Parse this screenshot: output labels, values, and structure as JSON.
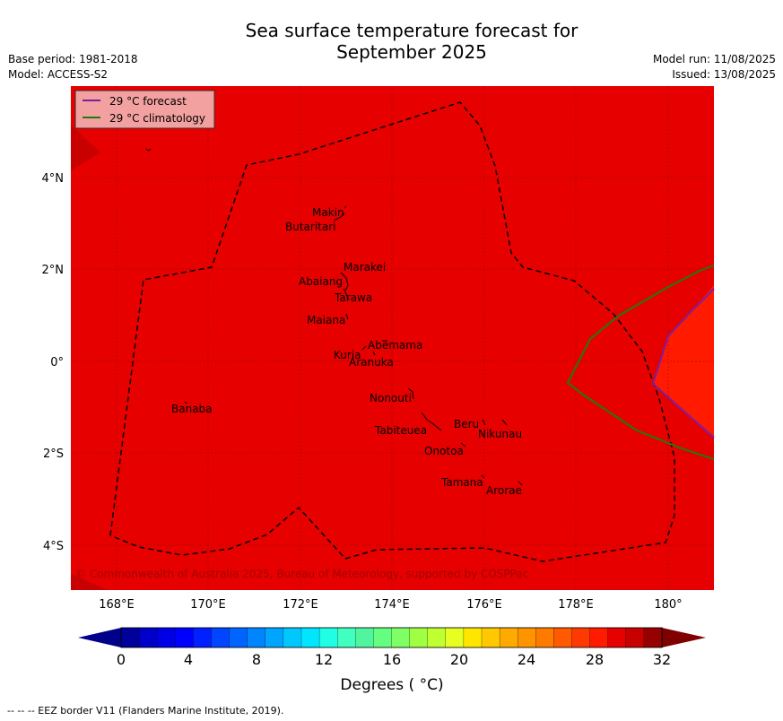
{
  "title_line1": "Sea surface temperature forecast for",
  "title_line2": "September 2025",
  "meta_left": [
    "Base period: 1981-2018",
    "Model: ACCESS-S2"
  ],
  "meta_right": [
    "Model run: 11/08/2025",
    "Issued: 13/08/2025"
  ],
  "legend": [
    {
      "label": "29 °C  forecast",
      "color": "#7b1fa2"
    },
    {
      "label": "29 °C  climatology",
      "color": "#1e7a12"
    }
  ],
  "lon_ticks": [
    "168°E",
    "170°E",
    "172°E",
    "174°E",
    "176°E",
    "178°E",
    "180°"
  ],
  "lat_ticks": [
    "4°N",
    "2°N",
    "0°",
    "2°S",
    "4°S"
  ],
  "islands": [
    "Makin",
    "Butaritari",
    "Marakei",
    "Abaiang",
    "Tarawa",
    "Maiana",
    "Abemama",
    "Kuria",
    "Aranuka",
    "Nonouti",
    "Beru",
    "Nikunau",
    "Tabiteuea",
    "Onotoa",
    "Tamana",
    "Arorae",
    "Banaba"
  ],
  "copyright": "© Commonwealth of Australia 2025, Bureau of Meteorology, supported by COSPPac",
  "colorbar": {
    "ticks": [
      "0",
      "4",
      "8",
      "12",
      "16",
      "20",
      "24",
      "28",
      "32"
    ],
    "title": "Degrees ( °C)",
    "colors": [
      "#00009a",
      "#0000c8",
      "#0000e6",
      "#0000ff",
      "#0020ff",
      "#0045ff",
      "#0065ff",
      "#0085ff",
      "#00a5ff",
      "#00c8ff",
      "#00e6ff",
      "#20ffe6",
      "#40ffc0",
      "#50f5a0",
      "#64ff80",
      "#80ff64",
      "#a0ff40",
      "#c0ff30",
      "#e6ff20",
      "#ffe600",
      "#ffc800",
      "#ffaa00",
      "#ff9400",
      "#ff7a00",
      "#ff5a00",
      "#ff3a00",
      "#ff1a00",
      "#e60000",
      "#c80000",
      "#960000"
    ],
    "under_color": "#00008b",
    "over_color": "#800000"
  },
  "map_colors": {
    "background": "#e60000",
    "warmer": "#ff1a00",
    "darker": "#c80000"
  },
  "footer": "--  --  -- EEZ border V11 (Flanders Marine Institute, 2019)."
}
